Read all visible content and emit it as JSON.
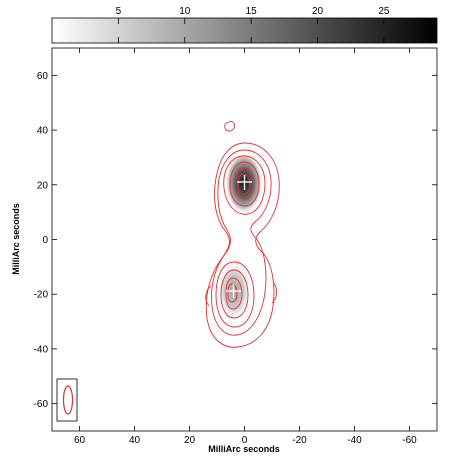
{
  "chart_data": {
    "type": "contour",
    "xlabel": "MilliArc seconds",
    "ylabel": "MilliArc seconds",
    "xlim": [
      70,
      -70
    ],
    "ylim": [
      -70,
      70
    ],
    "x_ticks": [
      60,
      40,
      20,
      0,
      -20,
      -40,
      -60
    ],
    "y_ticks": [
      60,
      40,
      20,
      0,
      -20,
      -40,
      -60
    ],
    "x_tick_labels": [
      "60",
      "40",
      "20",
      "0",
      "-20",
      "-40",
      "-60"
    ],
    "y_tick_labels": [
      "60",
      "40",
      "20",
      "0",
      "-20",
      "-40",
      "-60"
    ],
    "colorbar": {
      "range": [
        0,
        29
      ],
      "ticks": [
        5,
        10,
        15,
        20,
        25
      ],
      "tick_labels": [
        "5",
        "10",
        "15",
        "20",
        "25"
      ],
      "cmap": "greyscale"
    },
    "contour_color": "#e03030",
    "marker_color": "#ffffff",
    "components": [
      {
        "name": "north",
        "x": 0,
        "y": 20,
        "peak": 29,
        "marker": "cross"
      },
      {
        "name": "south",
        "x": 4,
        "y": -20,
        "peak": 10,
        "marker": "cross"
      }
    ],
    "beam": {
      "x": 65,
      "y": -60,
      "major_mas": 9,
      "minor_mas": 4,
      "pa_deg": 0
    }
  }
}
